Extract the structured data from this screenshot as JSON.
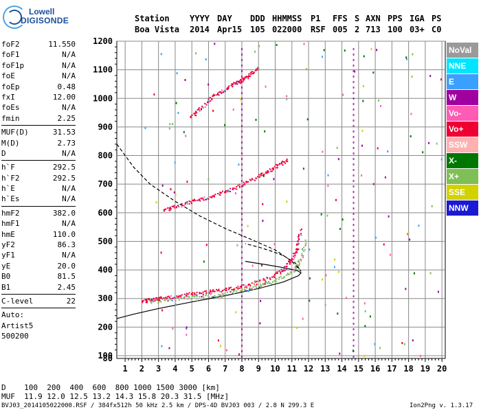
{
  "logo": {
    "line1": "Lowell",
    "line2": "DIGISONDE"
  },
  "header": {
    "row1": [
      "Station",
      "YYYY",
      "DAY",
      "DDD",
      "HHMMSS",
      "P1",
      "FFS",
      "S",
      "AXN",
      "PPS",
      "IGA",
      "PS"
    ],
    "row2": [
      "Boa Vista",
      "2014",
      "Apr15",
      "105",
      "022000",
      "RSF",
      "005",
      "2",
      "713",
      "100",
      "03+",
      "C0"
    ]
  },
  "params": {
    "group1": [
      {
        "name": "foF2",
        "value": "11.550"
      },
      {
        "name": "foF1",
        "value": "N/A"
      },
      {
        "name": "foF1p",
        "value": "N/A"
      },
      {
        "name": "foE",
        "value": "N/A"
      },
      {
        "name": "foEp",
        "value": "0.48"
      },
      {
        "name": "fxI",
        "value": "12.00"
      },
      {
        "name": "foEs",
        "value": "N/A"
      },
      {
        "name": "fmin",
        "value": "2.25"
      }
    ],
    "group2": [
      {
        "name": "MUF(D)",
        "value": "31.53"
      },
      {
        "name": "M(D)",
        "value": "2.73"
      },
      {
        "name": "D",
        "value": "N/A"
      }
    ],
    "group3": [
      {
        "name": "h`F",
        "value": "292.5"
      },
      {
        "name": "h`F2",
        "value": "292.5"
      },
      {
        "name": "h`E",
        "value": "N/A"
      },
      {
        "name": "h`Es",
        "value": "N/A"
      }
    ],
    "group4": [
      {
        "name": "hmF2",
        "value": "382.0"
      },
      {
        "name": "hmF1",
        "value": "N/A"
      },
      {
        "name": "hmE",
        "value": "110.0"
      },
      {
        "name": "yF2",
        "value": "86.3"
      },
      {
        "name": "yF1",
        "value": "N/A"
      },
      {
        "name": "yE",
        "value": "20.0"
      },
      {
        "name": "B0",
        "value": "81.5"
      },
      {
        "name": "B1",
        "value": "2.45"
      }
    ],
    "group5": [
      {
        "name": "C-level",
        "value": "22"
      }
    ]
  },
  "autoscaling": {
    "line1": "Auto:",
    "line2": "Artist5",
    "line3": "500200"
  },
  "legend": [
    {
      "label": "NoVal",
      "bg": "#9a9a9a",
      "fg": "#ffffff"
    },
    {
      "label": "NNE",
      "bg": "#00e5ff",
      "fg": "#ffffff"
    },
    {
      "label": "E",
      "bg": "#3aa0ff",
      "fg": "#ffffff"
    },
    {
      "label": "W",
      "bg": "#a000a0",
      "fg": "#ffffff"
    },
    {
      "label": "Vo-",
      "bg": "#ff5ab4",
      "fg": "#ffffff"
    },
    {
      "label": "Vo+",
      "bg": "#ee0033",
      "fg": "#ffffff"
    },
    {
      "label": "SSW",
      "bg": "#ffb0b0",
      "fg": "#ffffff"
    },
    {
      "label": "X-",
      "bg": "#007700",
      "fg": "#ffffff"
    },
    {
      "label": "X+",
      "bg": "#7fbf55",
      "fg": "#ffffff"
    },
    {
      "label": "SSE",
      "bg": "#d2d200",
      "fg": "#ffffff"
    },
    {
      "label": "NNW",
      "bg": "#1a1ad2",
      "fg": "#ffffff"
    }
  ],
  "muf_table": {
    "d_label": "D",
    "d_values": "100  200  400  600  800 1000 1500 3000 [km]",
    "muf_label": "MUF",
    "muf_values": "11.9 12.0 12.5 13.2 14.3 15.8 20.3 31.5 [MHz]"
  },
  "footer": {
    "left": "BVJ03_2014105022000.RSF / 384fx512h 50 kHz 2.5 km / DPS-4D BVJ03 003 / 2.8 N 299.3 E",
    "right": "Ion2Png v. 1.3.17"
  },
  "chart_data": {
    "type": "scatter",
    "xlim": [
      0.5,
      20.2
    ],
    "ylim": [
      80,
      1200
    ],
    "x_ticks": [
      1,
      2,
      3,
      4,
      5,
      6,
      7,
      8,
      9,
      10,
      11,
      12,
      13,
      14,
      15,
      16,
      17,
      18,
      19,
      20
    ],
    "y_ticks": [
      80,
      100,
      200,
      300,
      400,
      500,
      600,
      700,
      800,
      900,
      1000,
      1100,
      1200
    ],
    "grid": true,
    "xlabel": "",
    "ylabel": "",
    "traces": [
      {
        "name": "F2 O-trace",
        "color": "#ee0033",
        "x": [
          2.0,
          2.5,
          3.0,
          4.0,
          5.0,
          6.0,
          7.0,
          8.0,
          9.0,
          10.0,
          10.6,
          11.0,
          11.3,
          11.5
        ],
        "y": [
          293,
          296,
          300,
          310,
          318,
          325,
          333,
          343,
          360,
          385,
          410,
          440,
          480,
          545
        ]
      },
      {
        "name": "F2 X-trace",
        "color": "#7fbf55",
        "x": [
          2.5,
          3.5,
          5.0,
          6.5,
          8.0,
          9.0,
          10.0,
          11.0,
          11.5,
          11.8
        ],
        "y": [
          290,
          296,
          305,
          315,
          330,
          345,
          365,
          395,
          430,
          510
        ]
      },
      {
        "name": "2nd hop",
        "color": "#ee0033",
        "x": [
          3.3,
          4.0,
          5.0,
          6.0,
          7.0,
          8.0,
          9.0,
          9.6,
          10.2,
          10.7
        ],
        "y": [
          612,
          622,
          640,
          657,
          675,
          700,
          730,
          748,
          768,
          790
        ]
      },
      {
        "name": "3rd hop",
        "color": "#ee0033",
        "x": [
          4.9,
          5.5,
          6.2,
          7.0,
          7.6,
          8.0,
          8.4,
          9.0
        ],
        "y": [
          937,
          965,
          1005,
          1035,
          1055,
          1065,
          1082,
          1110
        ]
      }
    ],
    "profile_solid": {
      "x": [
        0.5,
        1.5,
        3.0,
        5.0,
        7.0,
        9.0,
        10.5,
        11.4,
        11.55,
        11.3,
        10.5,
        9.5,
        8.2
      ],
      "y": [
        230,
        245,
        265,
        288,
        310,
        335,
        358,
        380,
        390,
        398,
        408,
        418,
        430
      ]
    },
    "profile_dashed": {
      "x": [
        0.5,
        1.5,
        2.5,
        4.0,
        5.5,
        7.0,
        8.5,
        10.0,
        11.0,
        11.55,
        11.2,
        10.5,
        9.8,
        9.0,
        8.2
      ],
      "y": [
        840,
        760,
        700,
        640,
        588,
        545,
        508,
        470,
        430,
        395,
        425,
        450,
        465,
        480,
        492
      ]
    },
    "noise_band_x": [
      8.0,
      14.7
    ],
    "noise_band_colors": [
      "#a000a0",
      "#a000a0"
    ]
  }
}
